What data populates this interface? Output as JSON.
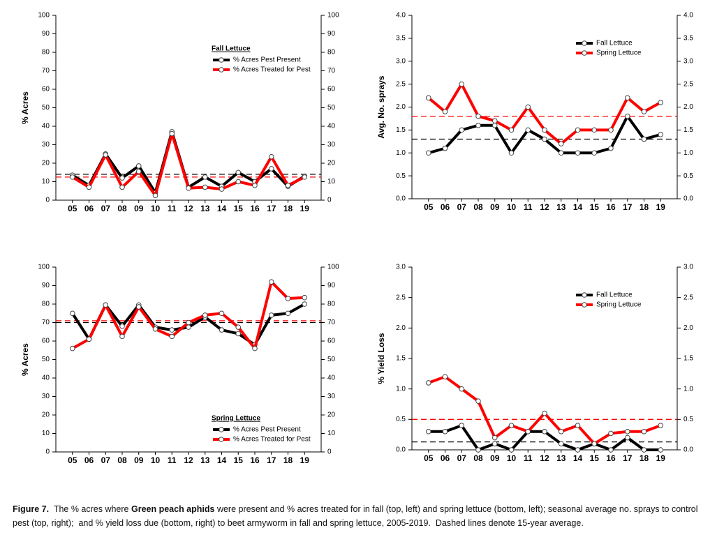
{
  "chart_data": [
    {
      "type": "line",
      "ylabel": "% Acres",
      "legend_title": "Fall Lettuce",
      "legend": "upper center",
      "categories": [
        "05",
        "06",
        "07",
        "08",
        "09",
        "10",
        "11",
        "12",
        "13",
        "14",
        "15",
        "16",
        "17",
        "18",
        "19"
      ],
      "ylim": [
        0,
        100
      ],
      "yticks": [
        0,
        10,
        20,
        30,
        40,
        50,
        60,
        70,
        80,
        90,
        100
      ],
      "y2lim": [
        0,
        100
      ],
      "y2ticks": [
        0,
        10,
        20,
        30,
        40,
        50,
        60,
        70,
        80,
        90,
        100
      ],
      "series": [
        {
          "name": "% Acres Pest Present",
          "color": "#000000",
          "average": 14,
          "values": [
            13.5,
            8,
            25,
            12,
            18.5,
            4,
            37,
            7,
            12.5,
            7.5,
            15,
            10,
            17,
            7.5,
            13
          ]
        },
        {
          "name": "% Acres Treated for Pest",
          "color": "#ff0000",
          "average": 12.5,
          "values": [
            12.5,
            7,
            24.5,
            7,
            15.5,
            2.5,
            36,
            6.5,
            7,
            6,
            10,
            8,
            23.5,
            8,
            12.5
          ]
        }
      ]
    },
    {
      "type": "line",
      "ylabel": "Avg. No. sprays",
      "legend": "upper right",
      "categories": [
        "05",
        "06",
        "07",
        "08",
        "09",
        "10",
        "11",
        "12",
        "13",
        "14",
        "15",
        "16",
        "17",
        "18",
        "19"
      ],
      "ylim": [
        0,
        4
      ],
      "yticks": [
        {
          "value": 0,
          "label": "0.0"
        },
        0.5,
        {
          "value": 1,
          "label": "1.0"
        },
        1.5,
        {
          "value": 2,
          "label": "2.0"
        },
        2.5,
        {
          "value": 3,
          "label": "3.0"
        },
        3.5,
        {
          "value": 4,
          "label": "4.0"
        }
      ],
      "y2lim": [
        0,
        4
      ],
      "y2ticks": [
        {
          "value": 0,
          "label": "0.0"
        },
        0.5,
        {
          "value": 1,
          "label": "1.0"
        },
        1.5,
        {
          "value": 2,
          "label": "2.0"
        },
        2.5,
        {
          "value": 3,
          "label": "3.0"
        },
        3.5,
        {
          "value": 4,
          "label": "4.0"
        }
      ],
      "series": [
        {
          "name": "Fall Lettuce",
          "color": "#000000",
          "average": 1.3,
          "values": [
            1.0,
            1.1,
            1.5,
            1.6,
            1.6,
            1.0,
            1.5,
            1.3,
            1.0,
            1.0,
            1.0,
            1.1,
            1.8,
            1.3,
            1.4
          ]
        },
        {
          "name": "Spring Lettuce",
          "color": "#ff0000",
          "average": 1.8,
          "values": [
            2.2,
            1.9,
            2.5,
            1.8,
            1.7,
            1.5,
            2.0,
            1.5,
            1.2,
            1.5,
            1.5,
            1.5,
            2.2,
            1.9,
            2.1
          ]
        }
      ]
    },
    {
      "type": "line",
      "ylabel": "% Acres",
      "legend_title": "Spring Lettuce",
      "legend": "lower center",
      "categories": [
        "05",
        "06",
        "07",
        "08",
        "09",
        "10",
        "11",
        "12",
        "13",
        "14",
        "15",
        "16",
        "17",
        "18",
        "19"
      ],
      "ylim": [
        0,
        100
      ],
      "yticks": [
        0,
        10,
        20,
        30,
        40,
        50,
        60,
        70,
        80,
        90,
        100
      ],
      "y2lim": [
        0,
        100
      ],
      "y2ticks": [
        0,
        10,
        20,
        30,
        40,
        50,
        60,
        70,
        80,
        90,
        100
      ],
      "series": [
        {
          "name": "% Acres Pest Present",
          "color": "#000000",
          "average": 70,
          "values": [
            75,
            61,
            79.5,
            68,
            79.5,
            67.5,
            66,
            67.5,
            73,
            66,
            64,
            58,
            74,
            75,
            80
          ]
        },
        {
          "name": "% Acres Treated for Pest",
          "color": "#ff0000",
          "average": 71,
          "values": [
            56,
            61,
            79.5,
            62.5,
            78.5,
            66.5,
            62.5,
            70,
            74,
            75,
            67.5,
            56,
            92,
            83,
            83.5
          ]
        }
      ]
    },
    {
      "type": "line",
      "ylabel": "% Yield Loss",
      "legend": "upper right",
      "categories": [
        "05",
        "06",
        "07",
        "08",
        "09",
        "10",
        "11",
        "12",
        "13",
        "14",
        "15",
        "16",
        "17",
        "18",
        "19"
      ],
      "ylim": [
        0,
        3
      ],
      "yticks": [
        {
          "value": 0,
          "label": "0.0"
        },
        0.5,
        {
          "value": 1,
          "label": "1.0"
        },
        1.5,
        {
          "value": 2,
          "label": "2.0"
        },
        2.5,
        {
          "value": 3,
          "label": "3.0"
        }
      ],
      "y2lim": [
        0,
        3
      ],
      "y2ticks": [
        {
          "value": 0,
          "label": "0.0"
        },
        0.5,
        {
          "value": 1,
          "label": "1.0"
        },
        1.5,
        {
          "value": 2,
          "label": "2.0"
        },
        2.5,
        {
          "value": 3,
          "label": "3.0"
        }
      ],
      "series": [
        {
          "name": "Fall Lettuce",
          "color": "#000000",
          "average": 0.13,
          "values": [
            0.3,
            0.3,
            0.4,
            0.0,
            0.1,
            0.0,
            0.3,
            0.3,
            0.1,
            0.0,
            0.1,
            0.0,
            0.2,
            0.0,
            0.0
          ]
        },
        {
          "name": "Spring Lettuce",
          "color": "#ff0000",
          "average": 0.5,
          "values": [
            1.1,
            1.2,
            1.0,
            0.8,
            0.2,
            0.4,
            0.3,
            0.6,
            0.3,
            0.4,
            0.1,
            0.27,
            0.3,
            0.3,
            0.4
          ]
        }
      ]
    }
  ],
  "caption": [
    {
      "text": "Figure 7.",
      "bold": true
    },
    {
      "text": "  The % acres where ",
      "bold": false
    },
    {
      "text": "Green peach aphids",
      "bold": true
    },
    {
      "text": " were present and % acres treated for in fall (top, left) and spring lettuce (bottom, left); seasonal average no. sprays to control pest (top, right);  and % yield loss due (bottom, right) to beet armyworm in fall and spring lettuce, 2005-2019.  Dashed lines denote 15-year average.",
      "bold": false
    }
  ]
}
